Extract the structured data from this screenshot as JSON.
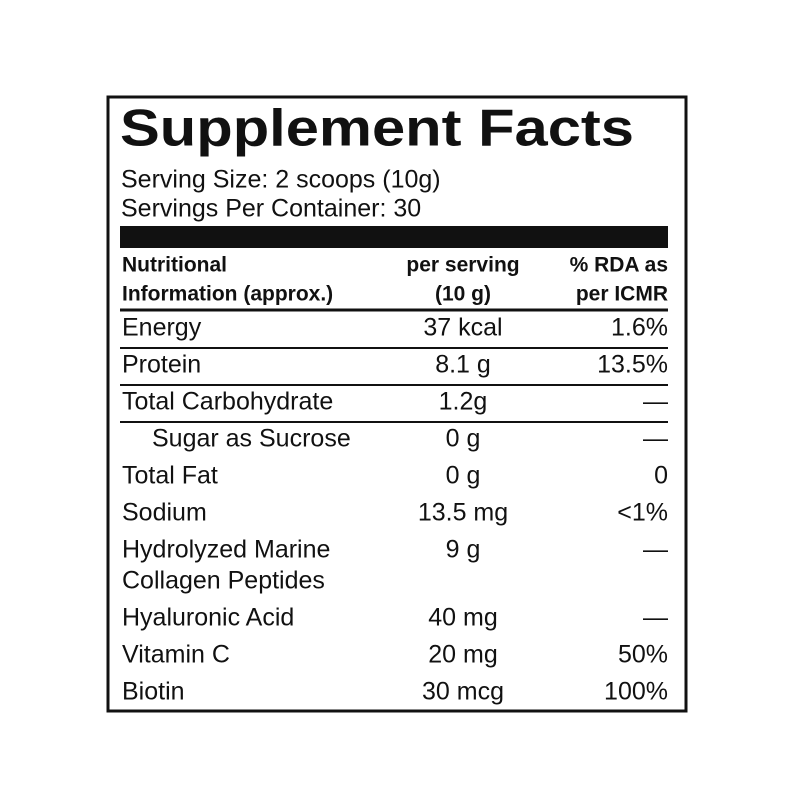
{
  "title": "Supplement Facts",
  "serving_size": "Serving Size: 2 scoops (10g)",
  "servings_per_container": "Servings Per Container: 30",
  "table": {
    "header": [
      [
        "Nutritional",
        "Information (approx.)"
      ],
      [
        "per serving",
        "(10 g)"
      ],
      [
        "% RDA as",
        "per ICMR"
      ]
    ],
    "rows": [
      [
        "Energy",
        "37 kcal",
        "1.6%"
      ],
      [
        "Protein",
        "8.1 g",
        "13.5%"
      ],
      [
        "Total Carbohydrate",
        "1.2g",
        "—"
      ],
      [
        "Sugar as Sucrose",
        "0 g",
        "—"
      ],
      [
        "Total Fat",
        "0 g",
        "0"
      ],
      [
        "Sodium",
        "13.5 mg",
        "<1%"
      ],
      [
        [
          "Hydrolyzed Marine",
          "Collagen Peptides"
        ],
        "9 g",
        "—"
      ],
      [
        "Hyaluronic Acid",
        "40 mg",
        "—"
      ],
      [
        "Vitamin C",
        "20 mg",
        "50%"
      ],
      [
        "Biotin",
        "30 mcg",
        "100%"
      ]
    ]
  }
}
